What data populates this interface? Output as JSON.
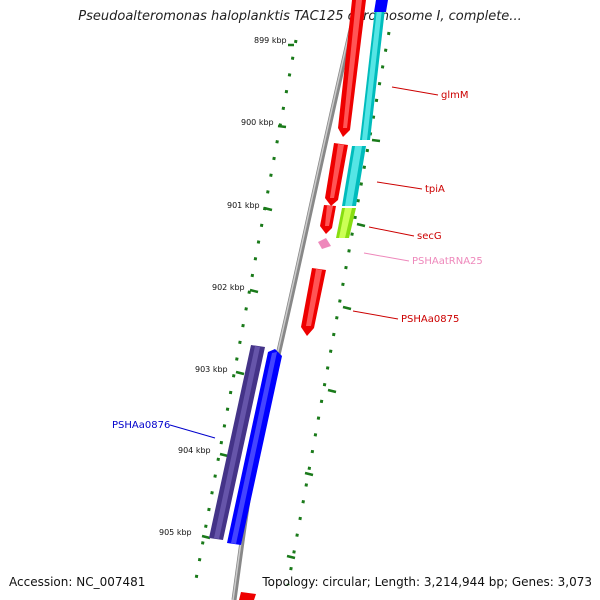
{
  "title": "Pseudoalteromonas haloplanktis TAC125 chromosome I, complete...",
  "footer": {
    "accession": "Accession: NC_007481",
    "stats": "Topology: circular; Length: 3,214,944 bp; Genes: 3,073"
  },
  "ticks": [
    "899 kbp",
    "900 kbp",
    "901 kbp",
    "902 kbp",
    "903 kbp",
    "904 kbp",
    "905 kbp"
  ],
  "genes": {
    "glmM": "glmM",
    "tpiA": "tpiA",
    "secG": "secG",
    "trna": "PSHAatRNA25",
    "a0875": "PSHAa0875",
    "a0876": "PSHAa0876"
  },
  "colors": {
    "cds": "#ff0000",
    "gene_rev": "#00cccc",
    "trna": "#ee88bb",
    "secg_fill": "#99ee22",
    "dark_blue": "#443388",
    "blue": "#0000ff",
    "tick": "#1a7a1a",
    "backbone": "#888888"
  }
}
